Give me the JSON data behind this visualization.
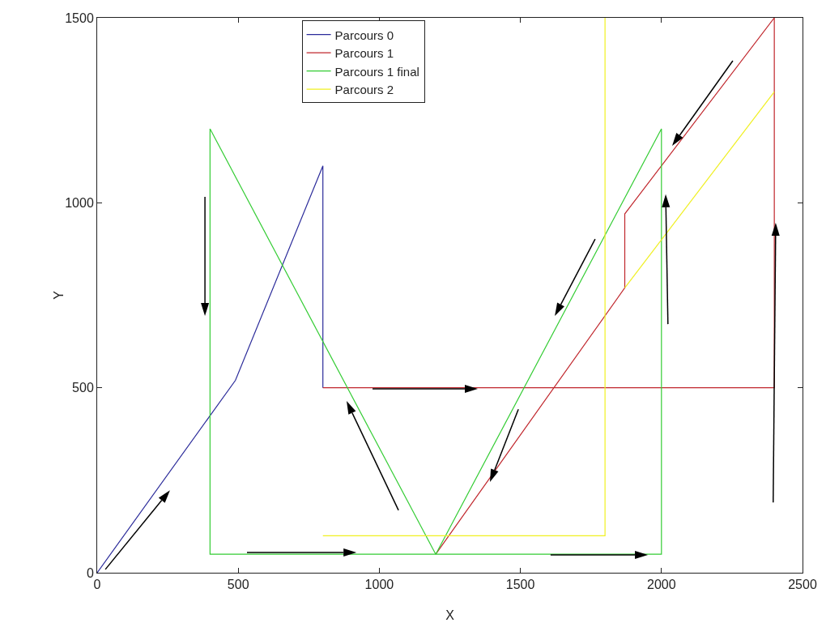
{
  "chart_data": {
    "type": "line",
    "xlabel": "X",
    "ylabel": "Y",
    "xlim": [
      0,
      2500
    ],
    "ylim": [
      0,
      1500
    ],
    "xticks": [
      0,
      500,
      1000,
      1500,
      2000,
      2500
    ],
    "yticks": [
      0,
      500,
      1000,
      1500
    ],
    "legend": "top",
    "series": [
      {
        "name": "Parcours 0",
        "color": "#2b2b9a",
        "x": [
          0,
          490,
          800,
          800
        ],
        "values": [
          0,
          520,
          1100,
          500
        ]
      },
      {
        "name": "Parcours 1",
        "color": "#c0262c",
        "x": [
          800,
          2400,
          2400,
          1870,
          1870,
          1200
        ],
        "values": [
          500,
          500,
          1500,
          970,
          770,
          50
        ]
      },
      {
        "name": "Parcours 1 final",
        "color": "#33cc33",
        "x": [
          400,
          400,
          2000,
          2000,
          1200,
          null,
          1200,
          400
        ],
        "values": [
          1200,
          50,
          50,
          1200,
          50,
          null,
          50,
          1200
        ]
      },
      {
        "name": "Parcours 2",
        "color": "#f0f020",
        "x": [
          800,
          1800,
          1800,
          null,
          1870,
          2400
        ],
        "values": [
          100,
          100,
          1500,
          null,
          770,
          1300
        ]
      }
    ]
  }
}
